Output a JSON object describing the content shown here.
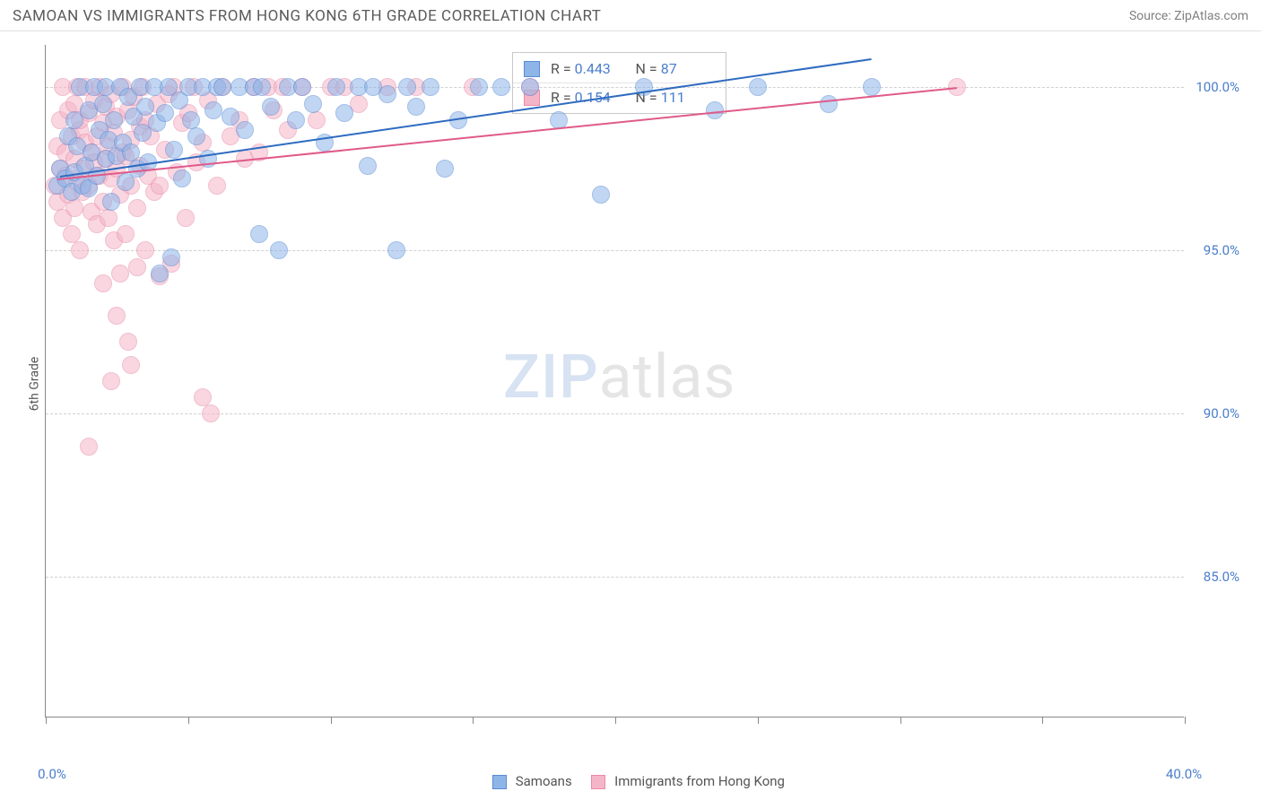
{
  "header": {
    "title": "SAMOAN VS IMMIGRANTS FROM HONG KONG 6TH GRADE CORRELATION CHART",
    "source_prefix": "Source: ",
    "source_name": "ZipAtlas.com"
  },
  "chart": {
    "type": "scatter",
    "ylabel": "6th Grade",
    "background_color": "#ffffff",
    "grid_color": "#d0d0d0",
    "axis_color": "#888888",
    "label_color": "#4a7ecc",
    "xlim": [
      0,
      40
    ],
    "ylim": [
      80.7,
      101.3
    ],
    "xtick_positions": [
      0,
      5,
      10,
      15,
      20,
      25,
      30,
      35,
      40
    ],
    "xtick_labels": {
      "0": "0.0%",
      "40": "40.0%"
    },
    "ytick_positions": [
      85,
      90,
      95,
      100
    ],
    "ytick_labels": {
      "85": "85.0%",
      "90": "90.0%",
      "95": "95.0%",
      "100": "100.0%"
    },
    "marker_radius": 10,
    "marker_opacity": 0.55,
    "series": {
      "samoans": {
        "label": "Samoans",
        "fill": "#8db5e8",
        "stroke": "#5a8bd4",
        "line_color": "#2e6bc0",
        "R_label": "R =",
        "R": "0.443",
        "N_label": "N =",
        "N": "87",
        "trend": {
          "x1": 0.5,
          "y1": 97.3,
          "x2": 29.0,
          "y2": 100.9
        },
        "points": [
          [
            0.4,
            97.0
          ],
          [
            0.5,
            97.5
          ],
          [
            0.7,
            97.2
          ],
          [
            0.8,
            98.5
          ],
          [
            0.9,
            96.8
          ],
          [
            1.0,
            97.4
          ],
          [
            1.0,
            99.0
          ],
          [
            1.1,
            98.2
          ],
          [
            1.2,
            100.0
          ],
          [
            1.3,
            97.0
          ],
          [
            1.4,
            97.6
          ],
          [
            1.5,
            99.3
          ],
          [
            1.5,
            96.9
          ],
          [
            1.6,
            98.0
          ],
          [
            1.7,
            100.0
          ],
          [
            1.8,
            97.3
          ],
          [
            1.9,
            98.7
          ],
          [
            2.0,
            99.5
          ],
          [
            2.1,
            97.8
          ],
          [
            2.1,
            100.0
          ],
          [
            2.2,
            98.4
          ],
          [
            2.3,
            96.5
          ],
          [
            2.4,
            99.0
          ],
          [
            2.5,
            97.9
          ],
          [
            2.6,
            100.0
          ],
          [
            2.7,
            98.3
          ],
          [
            2.8,
            97.1
          ],
          [
            2.9,
            99.7
          ],
          [
            3.0,
            98.0
          ],
          [
            3.1,
            99.1
          ],
          [
            3.2,
            97.5
          ],
          [
            3.3,
            100.0
          ],
          [
            3.4,
            98.6
          ],
          [
            3.5,
            99.4
          ],
          [
            3.6,
            97.7
          ],
          [
            3.8,
            100.0
          ],
          [
            3.9,
            98.9
          ],
          [
            4.0,
            94.3
          ],
          [
            4.2,
            99.2
          ],
          [
            4.3,
            100.0
          ],
          [
            4.4,
            94.8
          ],
          [
            4.5,
            98.1
          ],
          [
            4.7,
            99.6
          ],
          [
            4.8,
            97.2
          ],
          [
            5.0,
            100.0
          ],
          [
            5.1,
            99.0
          ],
          [
            5.3,
            98.5
          ],
          [
            5.5,
            100.0
          ],
          [
            5.7,
            97.8
          ],
          [
            5.9,
            99.3
          ],
          [
            6.0,
            100.0
          ],
          [
            6.2,
            100.0
          ],
          [
            6.5,
            99.1
          ],
          [
            6.8,
            100.0
          ],
          [
            7.0,
            98.7
          ],
          [
            7.3,
            100.0
          ],
          [
            7.5,
            95.5
          ],
          [
            7.6,
            100.0
          ],
          [
            7.9,
            99.4
          ],
          [
            8.2,
            95.0
          ],
          [
            8.5,
            100.0
          ],
          [
            8.8,
            99.0
          ],
          [
            9.0,
            100.0
          ],
          [
            9.4,
            99.5
          ],
          [
            9.8,
            98.3
          ],
          [
            10.2,
            100.0
          ],
          [
            10.5,
            99.2
          ],
          [
            11.0,
            100.0
          ],
          [
            11.3,
            97.6
          ],
          [
            11.5,
            100.0
          ],
          [
            12.0,
            99.8
          ],
          [
            12.3,
            95.0
          ],
          [
            12.7,
            100.0
          ],
          [
            13.0,
            99.4
          ],
          [
            13.5,
            100.0
          ],
          [
            14.0,
            97.5
          ],
          [
            14.5,
            99.0
          ],
          [
            15.2,
            100.0
          ],
          [
            16.0,
            100.0
          ],
          [
            17.0,
            100.0
          ],
          [
            18.0,
            99.0
          ],
          [
            19.5,
            96.7
          ],
          [
            21.0,
            100.0
          ],
          [
            23.5,
            99.3
          ],
          [
            25.0,
            100.0
          ],
          [
            27.5,
            99.5
          ],
          [
            29.0,
            100.0
          ]
        ]
      },
      "hongkong": {
        "label": "Immigrants from Hong Kong",
        "fill": "#f5b5c8",
        "stroke": "#e88ba8",
        "line_color": "#e05a8a",
        "R_label": "R =",
        "R": "0.154",
        "N_label": "N =",
        "N": "111",
        "trend": {
          "x1": 0.4,
          "y1": 97.2,
          "x2": 32.0,
          "y2": 100.0
        },
        "points": [
          [
            0.3,
            97.0
          ],
          [
            0.4,
            98.2
          ],
          [
            0.4,
            96.5
          ],
          [
            0.5,
            99.0
          ],
          [
            0.5,
            97.5
          ],
          [
            0.6,
            100.0
          ],
          [
            0.6,
            96.0
          ],
          [
            0.7,
            98.0
          ],
          [
            0.7,
            97.3
          ],
          [
            0.8,
            99.3
          ],
          [
            0.8,
            96.7
          ],
          [
            0.9,
            98.5
          ],
          [
            0.9,
            95.5
          ],
          [
            1.0,
            97.8
          ],
          [
            1.0,
            99.5
          ],
          [
            1.0,
            96.3
          ],
          [
            1.1,
            100.0
          ],
          [
            1.1,
            97.1
          ],
          [
            1.2,
            98.7
          ],
          [
            1.2,
            95.0
          ],
          [
            1.2,
            99.0
          ],
          [
            1.3,
            97.5
          ],
          [
            1.3,
            96.8
          ],
          [
            1.4,
            98.3
          ],
          [
            1.4,
            100.0
          ],
          [
            1.5,
            97.0
          ],
          [
            1.5,
            99.2
          ],
          [
            1.5,
            89.0
          ],
          [
            1.6,
            98.0
          ],
          [
            1.6,
            96.2
          ],
          [
            1.7,
            97.7
          ],
          [
            1.7,
            99.6
          ],
          [
            1.8,
            95.8
          ],
          [
            1.8,
            98.5
          ],
          [
            1.9,
            97.3
          ],
          [
            1.9,
            100.0
          ],
          [
            2.0,
            96.5
          ],
          [
            2.0,
            98.9
          ],
          [
            2.0,
            94.0
          ],
          [
            2.1,
            97.8
          ],
          [
            2.1,
            99.4
          ],
          [
            2.2,
            96.0
          ],
          [
            2.2,
            98.2
          ],
          [
            2.3,
            97.2
          ],
          [
            2.3,
            99.8
          ],
          [
            2.3,
            91.0
          ],
          [
            2.4,
            98.6
          ],
          [
            2.4,
            95.3
          ],
          [
            2.5,
            97.5
          ],
          [
            2.5,
            93.0
          ],
          [
            2.5,
            99.1
          ],
          [
            2.6,
            96.7
          ],
          [
            2.6,
            94.3
          ],
          [
            2.7,
            98.0
          ],
          [
            2.7,
            100.0
          ],
          [
            2.8,
            97.9
          ],
          [
            2.8,
            95.5
          ],
          [
            2.9,
            99.3
          ],
          [
            2.9,
            92.2
          ],
          [
            3.0,
            97.0
          ],
          [
            3.0,
            98.4
          ],
          [
            3.0,
            91.5
          ],
          [
            3.1,
            99.7
          ],
          [
            3.2,
            96.3
          ],
          [
            3.2,
            94.5
          ],
          [
            3.3,
            98.8
          ],
          [
            3.3,
            97.6
          ],
          [
            3.4,
            100.0
          ],
          [
            3.5,
            95.0
          ],
          [
            3.5,
            99.0
          ],
          [
            3.6,
            97.3
          ],
          [
            3.7,
            98.5
          ],
          [
            3.8,
            96.8
          ],
          [
            3.9,
            99.5
          ],
          [
            4.0,
            97.0
          ],
          [
            4.0,
            94.2
          ],
          [
            4.2,
            98.1
          ],
          [
            4.3,
            99.8
          ],
          [
            4.4,
            94.6
          ],
          [
            4.5,
            100.0
          ],
          [
            4.6,
            97.4
          ],
          [
            4.8,
            98.9
          ],
          [
            4.9,
            96.0
          ],
          [
            5.0,
            99.2
          ],
          [
            5.2,
            100.0
          ],
          [
            5.3,
            97.7
          ],
          [
            5.5,
            90.5
          ],
          [
            5.5,
            98.3
          ],
          [
            5.7,
            99.6
          ],
          [
            5.8,
            90.0
          ],
          [
            6.0,
            97.0
          ],
          [
            6.2,
            100.0
          ],
          [
            6.5,
            98.5
          ],
          [
            6.8,
            99.0
          ],
          [
            7.0,
            97.8
          ],
          [
            7.3,
            100.0
          ],
          [
            7.5,
            98.0
          ],
          [
            7.8,
            100.0
          ],
          [
            8.0,
            99.3
          ],
          [
            8.3,
            100.0
          ],
          [
            8.5,
            98.7
          ],
          [
            9.0,
            100.0
          ],
          [
            9.5,
            99.0
          ],
          [
            10.0,
            100.0
          ],
          [
            10.5,
            100.0
          ],
          [
            11.0,
            99.5
          ],
          [
            12.0,
            100.0
          ],
          [
            13.0,
            100.0
          ],
          [
            15.0,
            100.0
          ],
          [
            17.0,
            100.0
          ],
          [
            32.0,
            100.0
          ]
        ]
      }
    },
    "watermark": {
      "zip": "ZIP",
      "atlas": "atlas"
    }
  }
}
